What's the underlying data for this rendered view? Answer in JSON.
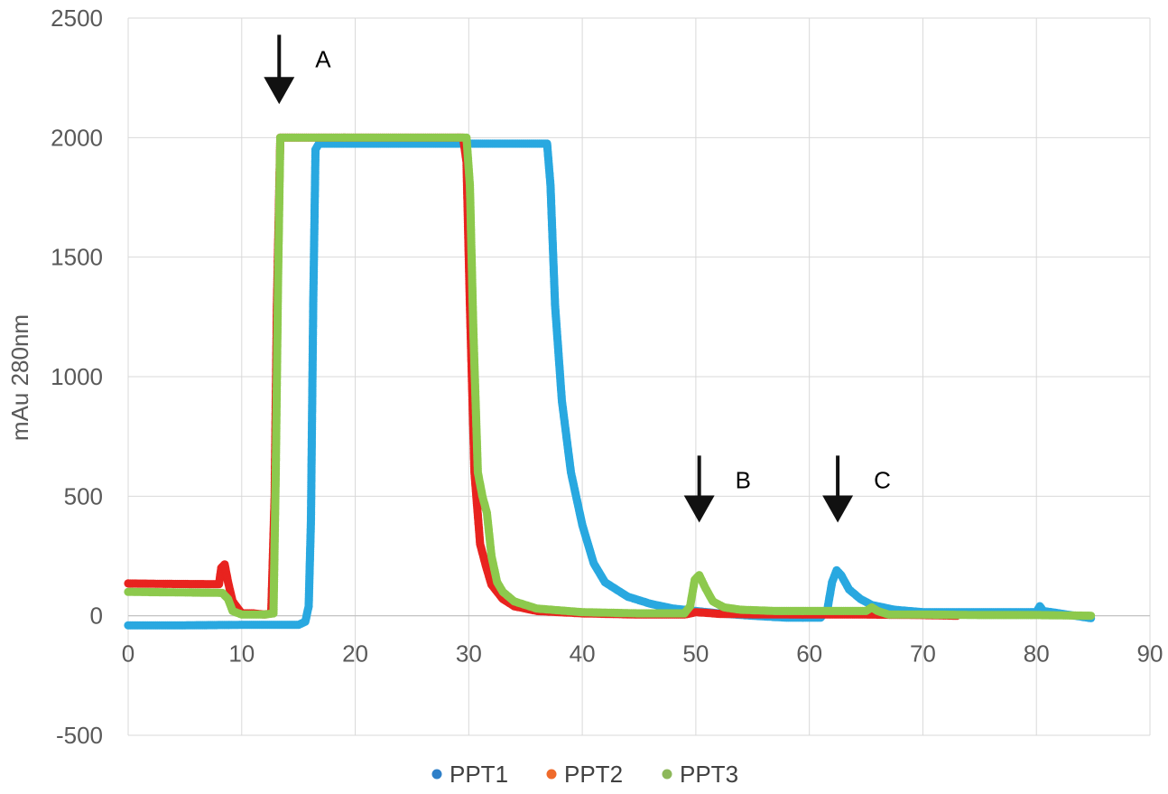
{
  "chart_data": {
    "type": "scatter",
    "title": "",
    "xlabel": "",
    "ylabel": "mAu 280nm",
    "xlim": [
      0,
      90
    ],
    "ylim": [
      -500,
      2500
    ],
    "x_ticks": [
      0,
      10,
      20,
      30,
      40,
      50,
      60,
      70,
      80,
      90
    ],
    "y_ticks": [
      -500,
      0,
      500,
      1000,
      1500,
      2000,
      2500
    ],
    "grid": true,
    "legend_position": "bottom",
    "series": [
      {
        "name": "PPT1",
        "color": "#29a8e0",
        "marker_color": "#2e7fc8",
        "points": [
          [
            0,
            -40
          ],
          [
            5,
            -40
          ],
          [
            10,
            -38
          ],
          [
            14,
            -38
          ],
          [
            15,
            -38
          ],
          [
            15.6,
            -25
          ],
          [
            15.9,
            40
          ],
          [
            16.1,
            400
          ],
          [
            16.3,
            1300
          ],
          [
            16.5,
            1950
          ],
          [
            16.8,
            1975
          ],
          [
            20,
            1975
          ],
          [
            25,
            1975
          ],
          [
            30,
            1975
          ],
          [
            36.9,
            1975
          ],
          [
            37.2,
            1800
          ],
          [
            37.6,
            1300
          ],
          [
            38.2,
            900
          ],
          [
            39,
            600
          ],
          [
            40,
            380
          ],
          [
            41,
            220
          ],
          [
            42,
            140
          ],
          [
            44,
            80
          ],
          [
            46,
            50
          ],
          [
            48,
            30
          ],
          [
            50,
            20
          ],
          [
            52,
            10
          ],
          [
            55,
            0
          ],
          [
            58,
            -8
          ],
          [
            61,
            -8
          ],
          [
            61.6,
            30
          ],
          [
            62,
            140
          ],
          [
            62.4,
            190
          ],
          [
            62.8,
            170
          ],
          [
            63.5,
            110
          ],
          [
            64.5,
            70
          ],
          [
            65.5,
            45
          ],
          [
            66.5,
            35
          ],
          [
            67.5,
            25
          ],
          [
            70,
            15
          ],
          [
            75,
            15
          ],
          [
            80,
            15
          ],
          [
            80.3,
            40
          ],
          [
            80.6,
            20
          ],
          [
            82,
            10
          ],
          [
            84.8,
            -10
          ]
        ]
      },
      {
        "name": "PPT2",
        "color": "#e8231f",
        "marker_color": "#ef6a2b",
        "points": [
          [
            0,
            135
          ],
          [
            4,
            133
          ],
          [
            8,
            132
          ],
          [
            8.2,
            200
          ],
          [
            8.5,
            215
          ],
          [
            8.8,
            140
          ],
          [
            9.2,
            60
          ],
          [
            10,
            10
          ],
          [
            11,
            10
          ],
          [
            12,
            5
          ],
          [
            12.6,
            10
          ],
          [
            12.9,
            500
          ],
          [
            13.1,
            1300
          ],
          [
            13.4,
            2000
          ],
          [
            15,
            2000
          ],
          [
            20,
            2000
          ],
          [
            25,
            2000
          ],
          [
            29.5,
            2000
          ],
          [
            29.8,
            1900
          ],
          [
            30.1,
            1300
          ],
          [
            30.5,
            600
          ],
          [
            31,
            300
          ],
          [
            31.5,
            210
          ],
          [
            32,
            130
          ],
          [
            33,
            70
          ],
          [
            34,
            40
          ],
          [
            36,
            20
          ],
          [
            40,
            10
          ],
          [
            45,
            5
          ],
          [
            49,
            5
          ],
          [
            50,
            15
          ],
          [
            51,
            12
          ],
          [
            52,
            8
          ],
          [
            55,
            6
          ],
          [
            60,
            5
          ],
          [
            65,
            5
          ],
          [
            70,
            3
          ],
          [
            73,
            0
          ]
        ]
      },
      {
        "name": "PPT3",
        "color": "#8dc94d",
        "marker_color": "#8db85a",
        "points": [
          [
            0,
            100
          ],
          [
            4,
            98
          ],
          [
            8,
            96
          ],
          [
            8.3,
            95
          ],
          [
            8.8,
            70
          ],
          [
            9.2,
            20
          ],
          [
            10,
            5
          ],
          [
            11,
            5
          ],
          [
            12,
            5
          ],
          [
            12.8,
            10
          ],
          [
            13.0,
            600
          ],
          [
            13.2,
            1400
          ],
          [
            13.4,
            2000
          ],
          [
            15,
            2000
          ],
          [
            20,
            2000
          ],
          [
            25,
            2000
          ],
          [
            29.8,
            2000
          ],
          [
            30.1,
            1800
          ],
          [
            30.4,
            1200
          ],
          [
            30.8,
            600
          ],
          [
            31.2,
            500
          ],
          [
            31.6,
            430
          ],
          [
            32,
            250
          ],
          [
            32.5,
            140
          ],
          [
            33,
            100
          ],
          [
            34,
            60
          ],
          [
            36,
            30
          ],
          [
            40,
            15
          ],
          [
            45,
            10
          ],
          [
            49,
            10
          ],
          [
            49.5,
            40
          ],
          [
            49.9,
            150
          ],
          [
            50.3,
            170
          ],
          [
            50.8,
            120
          ],
          [
            51.5,
            60
          ],
          [
            52.5,
            35
          ],
          [
            54,
            25
          ],
          [
            57,
            20
          ],
          [
            60,
            20
          ],
          [
            63,
            20
          ],
          [
            65,
            20
          ],
          [
            65.5,
            35
          ],
          [
            66,
            20
          ],
          [
            67,
            5
          ],
          [
            70,
            5
          ],
          [
            75,
            3
          ],
          [
            80,
            3
          ],
          [
            84.8,
            0
          ]
        ]
      }
    ],
    "annotations": [
      {
        "label": "A",
        "x": 13.3,
        "arrow_top_y": 2430,
        "arrow_bottom_y": 2140
      },
      {
        "label": "B",
        "x": 50.3,
        "arrow_top_y": 670,
        "arrow_bottom_y": 390
      },
      {
        "label": "C",
        "x": 62.5,
        "arrow_top_y": 670,
        "arrow_bottom_y": 390
      }
    ]
  }
}
